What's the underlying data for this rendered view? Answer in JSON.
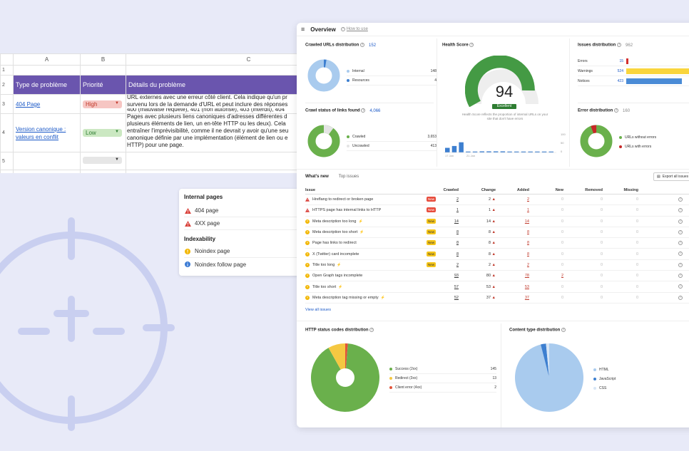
{
  "spreadsheet": {
    "columns": [
      "A",
      "B",
      "C"
    ],
    "row_numbers": [
      "1",
      "2",
      "3",
      "4",
      "5"
    ],
    "headers": [
      "Type de problème",
      "Priorité",
      "Détails du problème"
    ],
    "rows": [
      {
        "type": "404 Page",
        "priority": "High"
      },
      {
        "type_line1": "Version canonique :",
        "type_line2": "valeurs en conflit",
        "priority": "Low"
      }
    ],
    "details_lines": [
      "URL externes avec une erreur côté client. Cela indique qu'un pr",
      "survenu lors de la demande d'URL et peut inclure des réponses",
      "400 (mauvaise requête), 401 (non autorisé), 403 (interdit), 404",
      "Pages avec plusieurs liens canoniques d'adresses différentes d",
      "plusieurs éléments de lien, un en-tête HTTP ou les deux). Cela",
      "entraîner l'imprévisibilité, comme il ne devrait y avoir qu'une seu",
      "canonique définie par une implémentation (élément de lien ou e",
      "HTTP) pour une page."
    ]
  },
  "internal_pages": {
    "title": "Internal pages",
    "items": [
      "404 page",
      "4XX page"
    ],
    "indexability_title": "Indexability",
    "indexability_items": [
      "Noindex page",
      "Noindex follow page"
    ]
  },
  "dashboard": {
    "title": "Overview",
    "help": "How to use",
    "crawled_urls": {
      "title": "Crawled URLs distribution",
      "total": "152",
      "legend": [
        {
          "label": "Internal",
          "value": "148"
        },
        {
          "label": "Resources",
          "value": "4"
        }
      ]
    },
    "crawl_status": {
      "title": "Crawl status of links found",
      "total": "4,066",
      "legend": [
        {
          "label": "Crawled",
          "value": "3,653"
        },
        {
          "label": "Uncrawled",
          "value": "413"
        }
      ]
    },
    "health": {
      "title": "Health Score",
      "score": "94",
      "badge": "Excellent",
      "desc_line1": "Health Score reflects the proportion of internal URLs on your",
      "desc_line2": "site that don't have errors",
      "bars": [
        0.25,
        0.35,
        0.55,
        0.05,
        0.05,
        0.06,
        0.06,
        0.06,
        0.06,
        0.05,
        0.05,
        0.05,
        0.05,
        0.05,
        0.05,
        0.05
      ],
      "x_labels": [
        "17 Jan",
        "21 Jan"
      ],
      "y_labels": [
        "100",
        "50",
        "0"
      ]
    },
    "issues_dist": {
      "title": "Issues distribution",
      "total": "962",
      "rows": [
        {
          "label": "Errors",
          "value": "15",
          "fraction": 0.03,
          "color": "#d32f2f"
        },
        {
          "label": "Warnings",
          "value": "524",
          "fraction": 1.0,
          "color": "#f9d53d"
        },
        {
          "label": "Notices",
          "value": "423",
          "fraction": 0.81,
          "color": "#4a8bd6"
        }
      ]
    },
    "error_dist": {
      "title": "Error distribution",
      "total": "160",
      "legend": [
        {
          "label": "URLs without errors"
        },
        {
          "label": "URLs with errors"
        }
      ]
    },
    "tabs": [
      "What's new",
      "Top issues"
    ],
    "export": "Export all issues",
    "columns": [
      "Issue",
      "Crawled",
      "Change",
      "Added",
      "New",
      "Removed",
      "Missing"
    ],
    "issues": [
      {
        "icon": "error",
        "label": "Hreflang to redirect or broken page",
        "bolt": false,
        "badge": "New",
        "badge_type": "red",
        "crawled": "2",
        "change": "2",
        "added": "2",
        "new": "0",
        "removed": "0",
        "missing": "0"
      },
      {
        "icon": "error",
        "label": "HTTPS page has internal links to HTTP",
        "bolt": false,
        "badge": "New",
        "badge_type": "red",
        "crawled": "1",
        "change": "1",
        "added": "1",
        "new": "0",
        "removed": "0",
        "missing": "0"
      },
      {
        "icon": "warn",
        "label": "Meta description too long",
        "bolt": true,
        "badge": "New",
        "badge_type": "yel",
        "crawled": "14",
        "change": "14",
        "added": "14",
        "new": "0",
        "removed": "0",
        "missing": "0"
      },
      {
        "icon": "warn",
        "label": "Meta description too short",
        "bolt": true,
        "badge": "New",
        "badge_type": "yel",
        "crawled": "8",
        "change": "8",
        "added": "8",
        "new": "0",
        "removed": "0",
        "missing": "0"
      },
      {
        "icon": "warn",
        "label": "Page has links to redirect",
        "bolt": false,
        "badge": "New",
        "badge_type": "yel",
        "crawled": "8",
        "change": "8",
        "added": "8",
        "new": "0",
        "removed": "0",
        "missing": "0"
      },
      {
        "icon": "warn",
        "label": "X (Twitter) card incomplete",
        "bolt": false,
        "badge": "New",
        "badge_type": "yel",
        "crawled": "8",
        "change": "8",
        "added": "8",
        "new": "0",
        "removed": "0",
        "missing": "0"
      },
      {
        "icon": "warn",
        "label": "Title too long",
        "bolt": true,
        "badge": "New",
        "badge_type": "yel",
        "crawled": "2",
        "change": "2",
        "added": "2",
        "new": "0",
        "removed": "0",
        "missing": "0"
      },
      {
        "icon": "warn",
        "label": "Open Graph tags incomplete",
        "bolt": false,
        "badge": "",
        "badge_type": "",
        "crawled": "93",
        "change": "80",
        "added": "78",
        "new": "2",
        "removed": "0",
        "missing": "0"
      },
      {
        "icon": "warn",
        "label": "Title too short",
        "bolt": true,
        "badge": "",
        "badge_type": "",
        "crawled": "57",
        "change": "53",
        "added": "53",
        "new": "0",
        "removed": "0",
        "missing": "0"
      },
      {
        "icon": "warn",
        "label": "Meta description tag missing or empty",
        "bolt": true,
        "badge": "",
        "badge_type": "",
        "crawled": "52",
        "change": "37",
        "added": "37",
        "new": "0",
        "removed": "0",
        "missing": "0"
      }
    ],
    "view_all": "View all issues",
    "http_status": {
      "title": "HTTP status codes distribution",
      "legend": [
        {
          "label": "Success (2xx)",
          "value": "145",
          "color": "#6ab04c"
        },
        {
          "label": "Redirect (3xx)",
          "value": "13",
          "color": "#f5c842"
        },
        {
          "label": "Client error (4xx)",
          "value": "2",
          "color": "#e2543a"
        }
      ]
    },
    "content_type": {
      "title": "Content type distribution",
      "legend": [
        {
          "label": "HTML",
          "color": "#a9cbee"
        },
        {
          "label": "JavaScript",
          "color": "#3d7fd0"
        },
        {
          "label": "CSS",
          "color": "#d8e6f5"
        }
      ]
    }
  }
}
